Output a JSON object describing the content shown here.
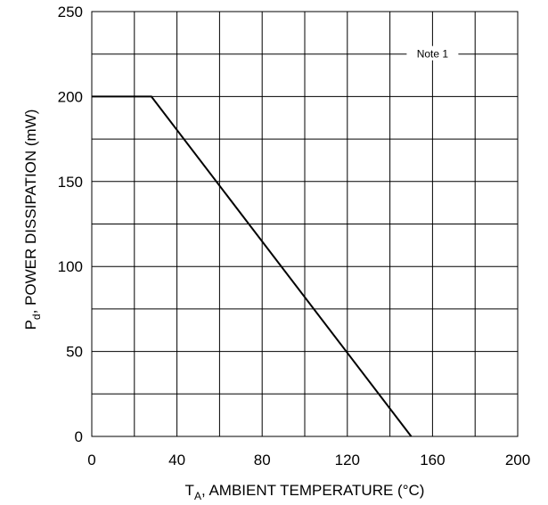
{
  "chart_data": {
    "type": "line",
    "title": "",
    "xlabel": {
      "main": "T",
      "sub": "A",
      "rest": ", AMBIENT TEMPERATURE (°C)"
    },
    "ylabel": {
      "main": "P",
      "sub": "d",
      "rest": ", POWER DISSIPATION (mW)"
    },
    "xlim": [
      0,
      200
    ],
    "ylim": [
      0,
      250
    ],
    "xticks": [
      0,
      40,
      80,
      120,
      160,
      200
    ],
    "yticks": [
      0,
      50,
      100,
      150,
      200,
      250
    ],
    "xgrid_step": 20,
    "ygrid_step": 25,
    "grid": true,
    "series": [
      {
        "x": [
          0,
          28,
          150
        ],
        "y": [
          200,
          200,
          0
        ]
      }
    ],
    "annotations": [
      {
        "text": "Note 1",
        "x": 160,
        "y": 225
      }
    ]
  }
}
